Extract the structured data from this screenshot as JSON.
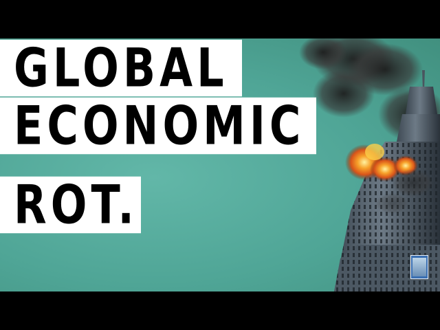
{
  "headline": {
    "line1": "GLOBAL",
    "line2": "ECONOMIC",
    "line3": "ROT."
  },
  "colors": {
    "background": "#4fa596",
    "text_box": "#ffffff",
    "text": "#000000",
    "letterbox": "#000000",
    "fire": "#e8611c",
    "smoke": "#2b2b2b"
  },
  "icons": {
    "building": "skyscraper-on-fire-icon",
    "book": "book-cover-icon"
  }
}
